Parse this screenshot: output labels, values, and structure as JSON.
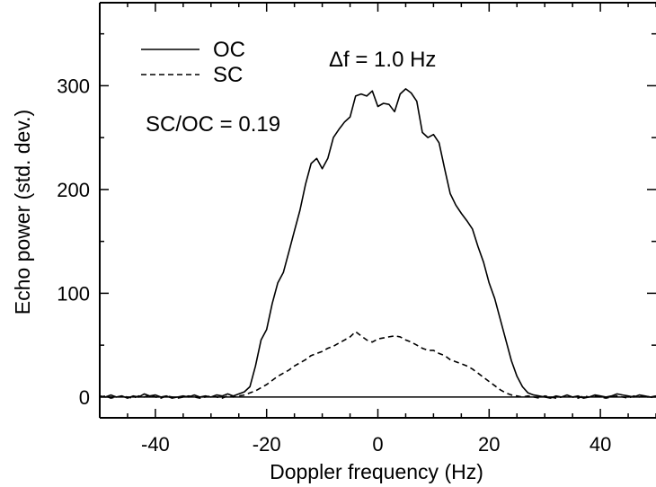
{
  "chart_data": {
    "type": "line",
    "title": "",
    "xlabel": "Doppler frequency (Hz)",
    "ylabel": "Echo power (std. dev.)",
    "xlim": [
      -50,
      50
    ],
    "ylim": [
      -20,
      380
    ],
    "xticks": [
      -40,
      -20,
      0,
      20,
      40
    ],
    "yticks": [
      0,
      100,
      200,
      300
    ],
    "xtick_labels": [
      "-40",
      "-20",
      "0",
      "20",
      "40"
    ],
    "ytick_labels": [
      "0",
      "100",
      "200",
      "300"
    ],
    "grid": false,
    "legend": "top-left",
    "annotations": {
      "resolution": "Δf = 1.0 Hz",
      "ratio": "SC/OC = 0.19"
    },
    "series": [
      {
        "name": "OC",
        "style": "solid",
        "x": [
          -50,
          -49,
          -48,
          -47,
          -46,
          -45,
          -44,
          -43,
          -42,
          -41,
          -40,
          -39,
          -38,
          -37,
          -36,
          -35,
          -34,
          -33,
          -32,
          -31,
          -30,
          -29,
          -28,
          -27,
          -26,
          -25,
          -24,
          -23,
          -22,
          -21,
          -20,
          -19,
          -18,
          -17,
          -16,
          -15,
          -14,
          -13,
          -12,
          -11,
          -10,
          -9,
          -8,
          -7,
          -6,
          -5,
          -4,
          -3,
          -2,
          -1,
          0,
          1,
          2,
          3,
          4,
          5,
          6,
          7,
          8,
          9,
          10,
          11,
          12,
          13,
          14,
          15,
          16,
          17,
          18,
          19,
          20,
          21,
          22,
          23,
          24,
          25,
          26,
          27,
          28,
          29,
          30,
          31,
          32,
          33,
          34,
          35,
          36,
          37,
          38,
          39,
          40,
          41,
          42,
          43,
          44,
          45,
          46,
          47,
          48,
          49,
          50
        ],
        "y": [
          1,
          0,
          2,
          0,
          1,
          -1,
          1,
          0,
          3,
          1,
          2,
          0,
          1,
          -1,
          0,
          1,
          0,
          2,
          0,
          1,
          0,
          2,
          1,
          3,
          1,
          3,
          5,
          10,
          30,
          55,
          65,
          90,
          110,
          120,
          140,
          160,
          180,
          205,
          225,
          230,
          220,
          230,
          250,
          258,
          265,
          270,
          290,
          292,
          290,
          295,
          280,
          283,
          282,
          275,
          292,
          297,
          293,
          285,
          255,
          250,
          253,
          245,
          220,
          196,
          185,
          177,
          170,
          162,
          145,
          130,
          110,
          95,
          75,
          55,
          35,
          20,
          10,
          4,
          2,
          1,
          0,
          -1,
          1,
          0,
          2,
          0,
          1,
          -1,
          0,
          2,
          1,
          0,
          1,
          3,
          2,
          1,
          0,
          2,
          1,
          0,
          1
        ]
      },
      {
        "name": "SC",
        "style": "dashed",
        "x": [
          -50,
          -49,
          -48,
          -47,
          -46,
          -45,
          -44,
          -43,
          -42,
          -41,
          -40,
          -39,
          -38,
          -37,
          -36,
          -35,
          -34,
          -33,
          -32,
          -31,
          -30,
          -29,
          -28,
          -27,
          -26,
          -25,
          -24,
          -23,
          -22,
          -21,
          -20,
          -19,
          -18,
          -17,
          -16,
          -15,
          -14,
          -13,
          -12,
          -11,
          -10,
          -9,
          -8,
          -7,
          -6,
          -5,
          -4,
          -3,
          -2,
          -1,
          0,
          1,
          2,
          3,
          4,
          5,
          6,
          7,
          8,
          9,
          10,
          11,
          12,
          13,
          14,
          15,
          16,
          17,
          18,
          19,
          20,
          21,
          22,
          23,
          24,
          25,
          26,
          27,
          28,
          29,
          30,
          31,
          32,
          33,
          34,
          35,
          36,
          37,
          38,
          39,
          40,
          41,
          42,
          43,
          44,
          45,
          46,
          47,
          48,
          49,
          50
        ],
        "y": [
          0,
          1,
          -1,
          0,
          1,
          0,
          -1,
          1,
          0,
          2,
          0,
          -1,
          1,
          0,
          -1,
          0,
          1,
          0,
          -1,
          0,
          1,
          0,
          -1,
          1,
          0,
          1,
          2,
          4,
          6,
          9,
          12,
          16,
          20,
          23,
          26,
          30,
          33,
          36,
          40,
          42,
          44,
          47,
          49,
          52,
          55,
          58,
          63,
          59,
          55,
          53,
          56,
          57,
          58,
          59,
          58,
          55,
          53,
          50,
          47,
          45,
          45,
          42,
          40,
          36,
          34,
          32,
          30,
          27,
          23,
          19,
          15,
          11,
          7,
          4,
          2,
          1,
          0,
          1,
          0,
          -1,
          1,
          0,
          -1,
          0,
          1,
          0,
          -1,
          1,
          0,
          1,
          0,
          -1,
          0,
          1,
          0,
          -1,
          1,
          0,
          1,
          0,
          -1
        ]
      }
    ]
  }
}
